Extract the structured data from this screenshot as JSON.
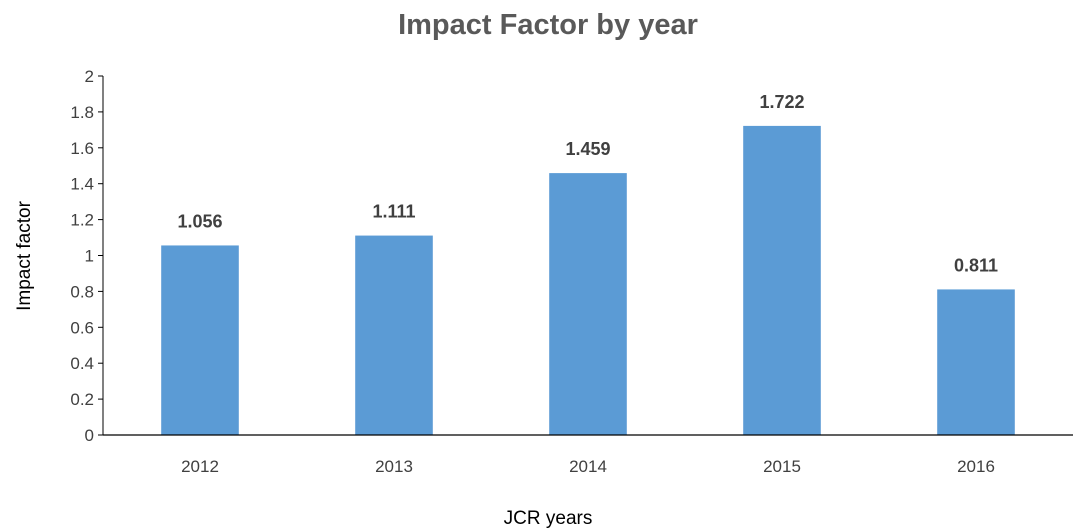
{
  "chart_data": {
    "type": "bar",
    "title": "Impact Factor by year",
    "xlabel": "JCR years",
    "ylabel": "Impact factor",
    "categories": [
      "2012",
      "2013",
      "2014",
      "2015",
      "2016"
    ],
    "values": [
      1.056,
      1.111,
      1.459,
      1.722,
      0.811
    ],
    "data_labels": [
      "1.056",
      "1.111",
      "1.459",
      "1.722",
      "0.811"
    ],
    "ylim": [
      0,
      2
    ],
    "yticks": [
      "0",
      "0.2",
      "0.4",
      "0.6",
      "0.8",
      "1",
      "1.2",
      "1.4",
      "1.6",
      "1.8",
      "2"
    ],
    "grid": false,
    "legend": "none",
    "bar_color": "#5B9BD5",
    "axis_color": "#000000"
  }
}
